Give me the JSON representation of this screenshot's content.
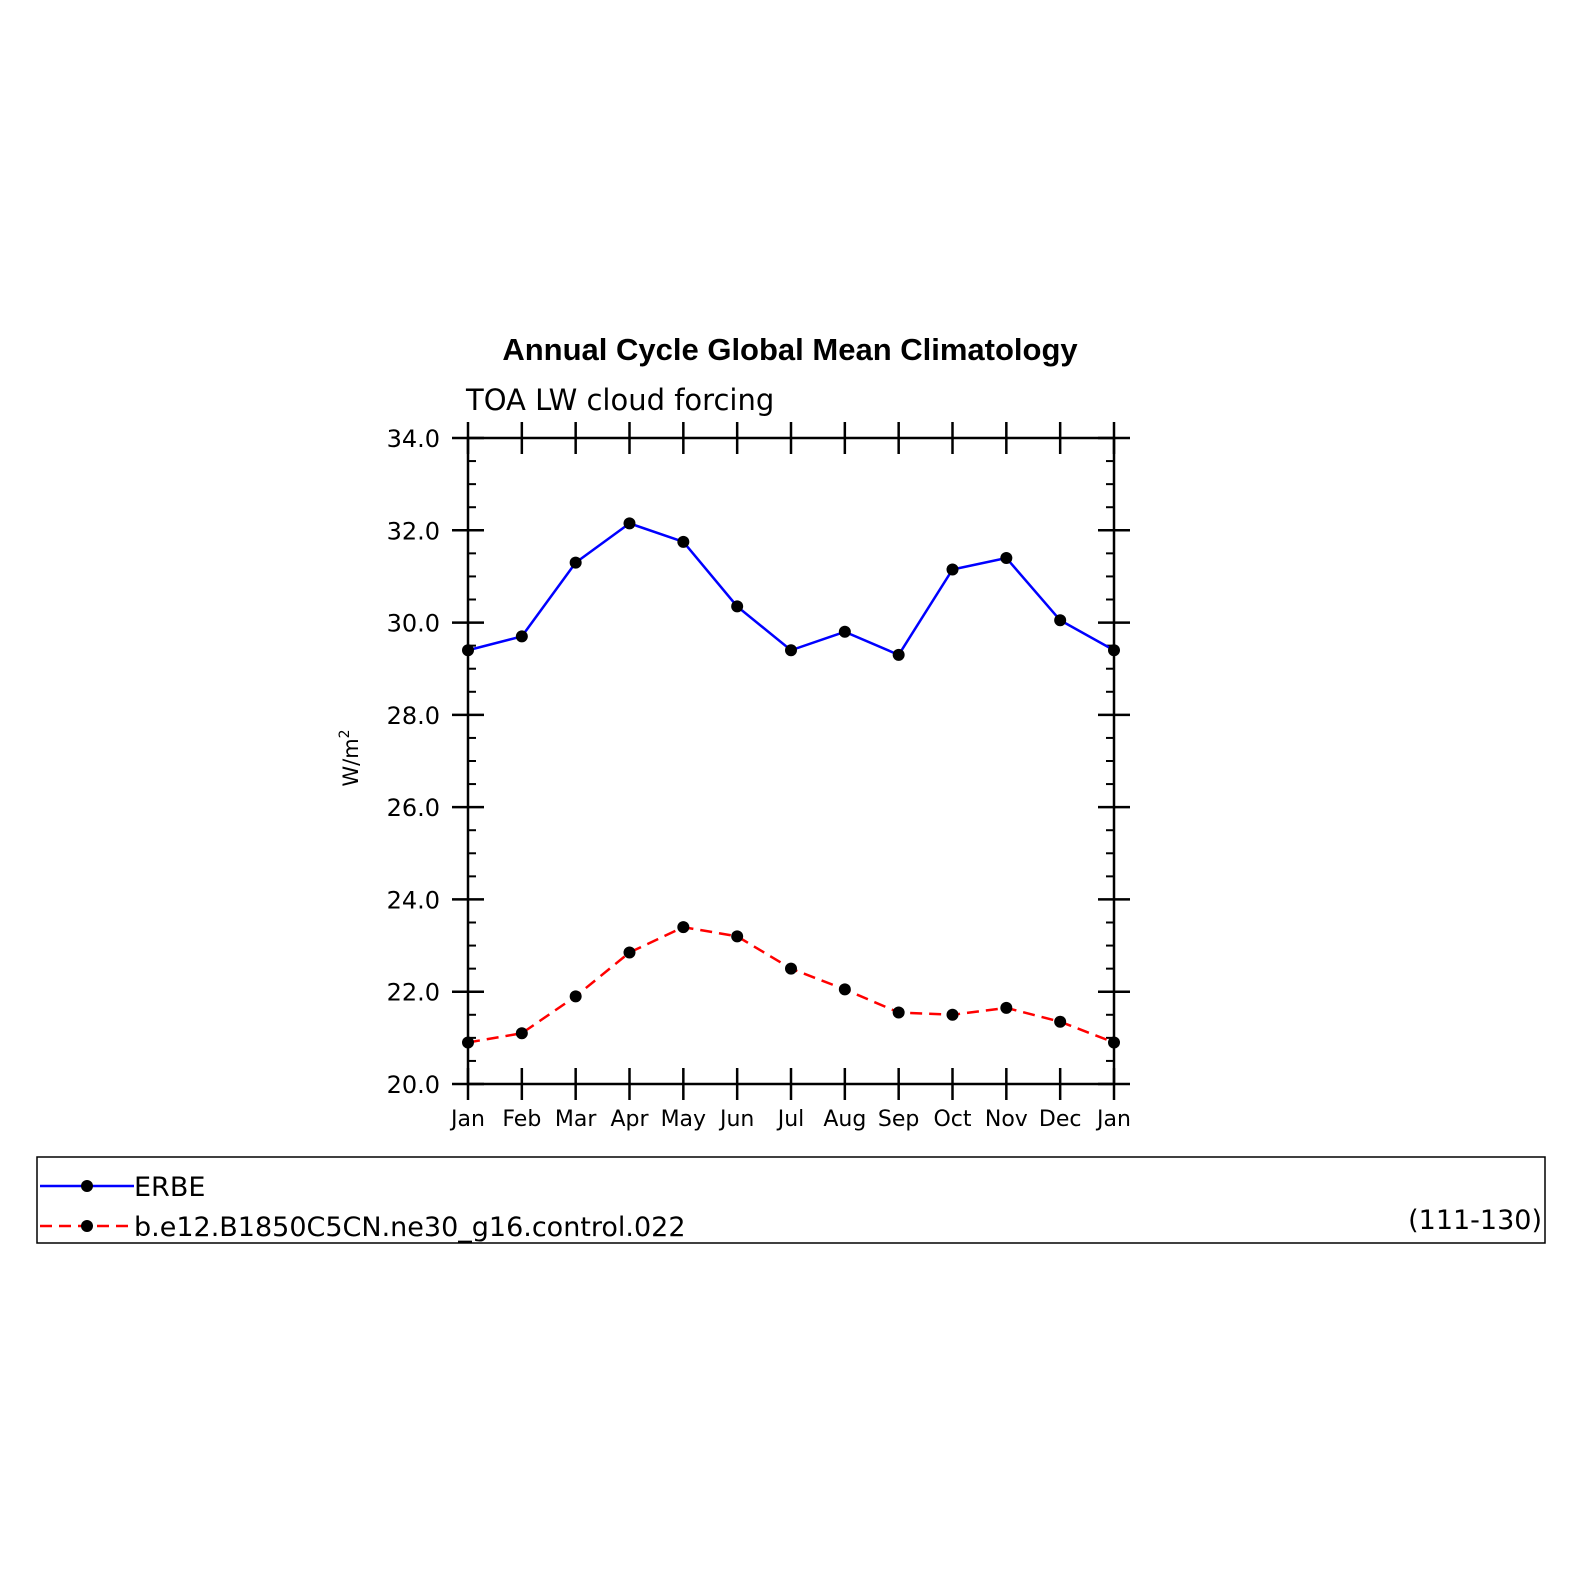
{
  "chart_data": {
    "type": "line",
    "title": "Annual Cycle Global Mean Climatology",
    "subtitle": "TOA LW cloud forcing",
    "xlabel": "",
    "ylabel": "W/m",
    "ylabel_superscript": "2",
    "categories": [
      "Jan",
      "Feb",
      "Mar",
      "Apr",
      "May",
      "Jun",
      "Jul",
      "Aug",
      "Sep",
      "Oct",
      "Nov",
      "Dec",
      "Jan"
    ],
    "ylim": [
      20.0,
      34.0
    ],
    "yticks": [
      "20.0",
      "22.0",
      "24.0",
      "26.0",
      "28.0",
      "30.0",
      "32.0",
      "34.0"
    ],
    "grid": false,
    "legend_position": "bottom",
    "series": [
      {
        "name": "ERBE",
        "color": "#0000ff",
        "line_style": "solid",
        "marker": "circle",
        "values": [
          29.4,
          29.7,
          31.3,
          32.15,
          31.75,
          30.35,
          29.4,
          29.8,
          29.3,
          31.15,
          31.4,
          30.05,
          29.4
        ]
      },
      {
        "name": "b.e12.B1850C5CN.ne30_g16.control.022",
        "color": "#ff0000",
        "line_style": "dashed",
        "marker": "circle",
        "values": [
          20.9,
          21.1,
          21.9,
          22.85,
          23.4,
          23.2,
          22.5,
          22.05,
          21.55,
          21.5,
          21.65,
          21.35,
          20.9
        ]
      }
    ],
    "legend_note": "(111-130)"
  }
}
